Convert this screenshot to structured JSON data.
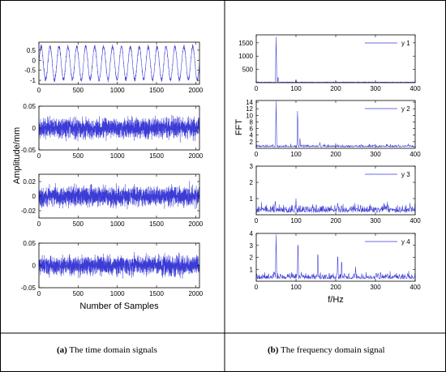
{
  "panels": [
    {
      "label": "(a)",
      "caption": "The time domain signals"
    },
    {
      "label": "(b)",
      "caption": "The frequency domain signal"
    }
  ],
  "chart_data": [
    {
      "type": "line",
      "group": "a",
      "title": "",
      "xlabel": "",
      "ylabel": "",
      "xlim": [
        0,
        2048
      ],
      "ylim": [
        -1.2,
        0.9
      ],
      "xticks": [
        0,
        500,
        1000,
        1500,
        2000
      ],
      "yticks": [
        -1,
        -0.5,
        0,
        0.5
      ],
      "ytick_labels": [
        "-1",
        "-0.5",
        "0",
        "0.5"
      ],
      "signal": {
        "kind": "sine",
        "cycles": 18,
        "amplitude": 0.82,
        "offset": -0.15,
        "noise": 0.1,
        "n": 2048
      },
      "color": "#3b3bd6"
    },
    {
      "type": "line",
      "group": "a",
      "title": "",
      "xlabel": "",
      "ylabel": "",
      "xlim": [
        0,
        2048
      ],
      "ylim": [
        -0.05,
        0.05
      ],
      "xticks": [
        0,
        500,
        1000,
        1500,
        2000
      ],
      "yticks": [
        -0.05,
        0,
        0.05
      ],
      "ytick_labels": [
        "-0.05",
        "0",
        "0.05"
      ],
      "signal": {
        "kind": "noise",
        "amplitude": 0.022,
        "n": 2048
      },
      "color": "#3b3bd6"
    },
    {
      "type": "line",
      "group": "a",
      "title": "",
      "xlabel": "",
      "ylabel": "Amplitude/mm",
      "xlim": [
        0,
        2048
      ],
      "ylim": [
        -0.03,
        0.03
      ],
      "xticks": [
        0,
        500,
        1000,
        1500,
        2000
      ],
      "yticks": [
        -0.02,
        0,
        0.02
      ],
      "ytick_labels": [
        "-0.02",
        "0",
        "0.02"
      ],
      "signal": {
        "kind": "noise",
        "amplitude": 0.013,
        "n": 2048
      },
      "color": "#3b3bd6"
    },
    {
      "type": "line",
      "group": "a",
      "title": "",
      "xlabel": "Number of Samples",
      "ylabel": "",
      "xlim": [
        0,
        2048
      ],
      "ylim": [
        -0.05,
        0.05
      ],
      "xticks": [
        0,
        500,
        1000,
        1500,
        2000
      ],
      "yticks": [
        -0.05,
        0,
        0.05
      ],
      "ytick_labels": [
        "-0.05",
        "0",
        "0.05"
      ],
      "signal": {
        "kind": "noise",
        "amplitude": 0.02,
        "n": 2048
      },
      "color": "#3b3bd6"
    },
    {
      "type": "line",
      "group": "b",
      "title": "",
      "xlabel": "",
      "ylabel": "",
      "xlim": [
        0,
        400
      ],
      "ylim": [
        0,
        1800
      ],
      "xticks": [
        0,
        100,
        200,
        300,
        400
      ],
      "yticks": [
        500,
        1000,
        1500
      ],
      "ytick_labels": [
        "500",
        "1000",
        "1500"
      ],
      "legend": {
        "label": "y 1",
        "position": "top-right"
      },
      "spectrum": {
        "baseline": 25,
        "noise": 20,
        "peaks": [
          [
            50,
            1720
          ],
          [
            55,
            220
          ],
          [
            100,
            120
          ],
          [
            210,
            20
          ]
        ]
      },
      "color": "#3b3bd6"
    },
    {
      "type": "line",
      "group": "b",
      "title": "",
      "xlabel": "",
      "ylabel": "FFT",
      "xlim": [
        0,
        400
      ],
      "ylim": [
        0,
        14.5
      ],
      "xticks": [
        0,
        100,
        200,
        300,
        400
      ],
      "yticks": [
        2,
        4,
        6,
        8,
        10,
        12,
        14
      ],
      "ytick_labels": [
        "2",
        "4",
        "6",
        "8",
        "10",
        "12",
        "14"
      ],
      "legend": {
        "label": "y 2",
        "position": "top-right"
      },
      "spectrum": {
        "baseline": 0.9,
        "noise": 0.7,
        "peaks": [
          [
            50,
            14.3
          ],
          [
            104,
            11.5
          ],
          [
            110,
            3
          ],
          [
            160,
            1.8
          ],
          [
            200,
            1.5
          ]
        ]
      },
      "color": "#3b3bd6"
    },
    {
      "type": "line",
      "group": "b",
      "title": "",
      "xlabel": "",
      "ylabel": "",
      "xlim": [
        0,
        400
      ],
      "ylim": [
        0,
        3
      ],
      "xticks": [
        0,
        100,
        200,
        300,
        400
      ],
      "yticks": [
        1,
        2,
        3
      ],
      "ytick_labels": [
        "1",
        "2",
        "3"
      ],
      "legend": {
        "label": "y 3",
        "position": "top-right"
      },
      "spectrum": {
        "baseline": 0.35,
        "noise": 0.45,
        "peaks": [
          [
            48,
            0.9
          ],
          [
            100,
            1.0
          ],
          [
            205,
            0.8
          ],
          [
            330,
            0.8
          ]
        ]
      },
      "color": "#3b3bd6"
    },
    {
      "type": "line",
      "group": "b",
      "title": "",
      "xlabel": "f/Hz",
      "ylabel": "",
      "xlim": [
        0,
        400
      ],
      "ylim": [
        0,
        4
      ],
      "xticks": [
        0,
        100,
        200,
        300,
        400
      ],
      "yticks": [
        1,
        2,
        3,
        4
      ],
      "ytick_labels": [
        "1",
        "2",
        "3",
        "4"
      ],
      "legend": {
        "label": "y 4",
        "position": "top-right"
      },
      "spectrum": {
        "baseline": 0.45,
        "noise": 0.5,
        "peaks": [
          [
            50,
            3.9
          ],
          [
            105,
            3.4
          ],
          [
            155,
            2.5
          ],
          [
            205,
            2.3
          ],
          [
            215,
            1.8
          ],
          [
            250,
            1.2
          ]
        ]
      },
      "color": "#3b3bd6"
    }
  ]
}
